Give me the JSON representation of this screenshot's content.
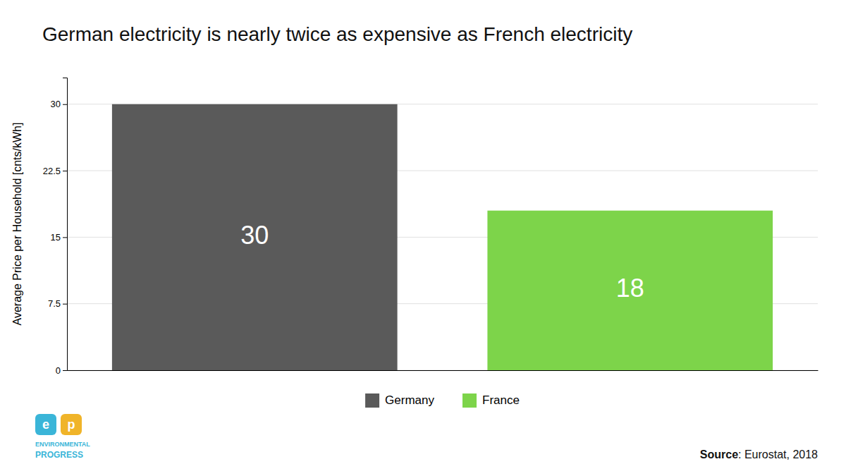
{
  "chart_data": {
    "type": "bar",
    "title": "German electricity is nearly twice as expensive as French electricity",
    "ylabel": "Average Price per Household [cnts/kWh]",
    "categories": [
      "Germany",
      "France"
    ],
    "values": [
      30,
      18
    ],
    "colors": [
      "#5a5a5a",
      "#7dd44a"
    ],
    "data_labels": true,
    "ylim": [
      0,
      33
    ],
    "yticks": [
      0,
      7.5,
      15,
      22.5,
      30
    ],
    "grid": true,
    "legend": "bottom",
    "tick_labels": "y",
    "annotations": [
      {
        "text": "Source"
      },
      {
        "text": ": Eurostat, 2018"
      },
      {
        "text": "e",
        "color": "#3ab5d8"
      },
      {
        "text": "p",
        "color": "#f0b429"
      },
      {
        "text": "ENVIRONMENTAL",
        "color": "#3ab5d8"
      },
      {
        "text": "PROGRESS",
        "color": "#3ab5d8"
      }
    ]
  }
}
